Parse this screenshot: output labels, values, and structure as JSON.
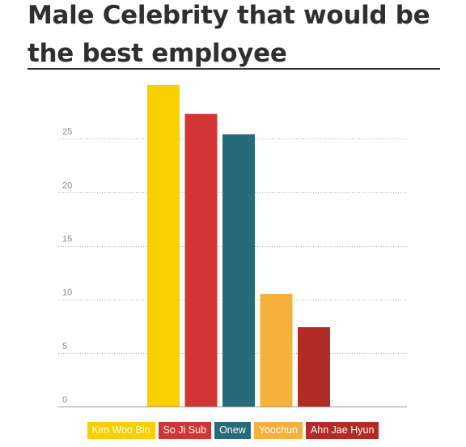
{
  "title": "Male Celebrity that would be the best employee",
  "chart_data": {
    "type": "bar",
    "title": "Male Celebrity that would be the best employee",
    "categories": [
      "Kim Woo Bin",
      "So Ji Sub",
      "Onew",
      "Yoochun",
      "Ahn Jae Hyun"
    ],
    "values": [
      30,
      27.3,
      25.4,
      10.5,
      7.4
    ],
    "colors": [
      "#f9cf00",
      "#d23634",
      "#276a7a",
      "#f5b13b",
      "#b22b24"
    ],
    "ylim": [
      0,
      30
    ],
    "yticks": [
      0,
      5,
      10,
      15,
      20,
      25
    ],
    "ytick_labels": [
      "0",
      "5",
      "10",
      "15",
      "20",
      "25"
    ],
    "grid": true,
    "legend": "bottom-center"
  }
}
